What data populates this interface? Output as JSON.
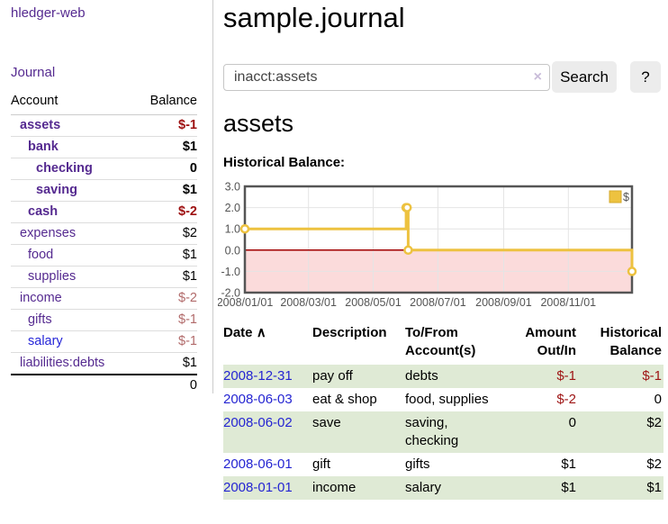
{
  "sidebar": {
    "app_title": "hledger-web",
    "nav": {
      "journal": "Journal"
    },
    "accounts_table": {
      "headers": {
        "account": "Account",
        "balance": "Balance"
      },
      "rows": [
        {
          "name": "assets",
          "depth": 1,
          "bold": true,
          "link_color": "p",
          "balance": "$-1",
          "balance_color": "neg-strong"
        },
        {
          "name": "bank",
          "depth": 2,
          "bold": true,
          "link_color": "p",
          "balance": "$1",
          "balance_color": ""
        },
        {
          "name": "checking",
          "depth": 3,
          "bold": true,
          "link_color": "p",
          "balance": "0",
          "balance_color": ""
        },
        {
          "name": "saving",
          "depth": 3,
          "bold": true,
          "link_color": "p",
          "balance": "$1",
          "balance_color": ""
        },
        {
          "name": "cash",
          "depth": 2,
          "bold": true,
          "link_color": "p",
          "balance": "$-2",
          "balance_color": "neg-strong"
        },
        {
          "name": "expenses",
          "depth": 1,
          "bold": false,
          "link_color": "p",
          "balance": "$2",
          "balance_color": ""
        },
        {
          "name": "food",
          "depth": 2,
          "bold": false,
          "link_color": "p",
          "balance": "$1",
          "balance_color": ""
        },
        {
          "name": "supplies",
          "depth": 2,
          "bold": false,
          "link_color": "p",
          "balance": "$1",
          "balance_color": ""
        },
        {
          "name": "income",
          "depth": 1,
          "bold": false,
          "link_color": "p",
          "balance": "$-2",
          "balance_color": "neg-muted"
        },
        {
          "name": "gifts",
          "depth": 2,
          "bold": false,
          "link_color": "p",
          "balance": "$-1",
          "balance_color": "neg-muted"
        },
        {
          "name": "salary",
          "depth": 2,
          "bold": false,
          "link_color": "bl",
          "balance": "$-1",
          "balance_color": "neg-muted"
        },
        {
          "name": "liabilities:debts",
          "depth": 1,
          "bold": false,
          "link_color": "p",
          "balance": "$1",
          "balance_color": ""
        }
      ],
      "total": "0"
    }
  },
  "main": {
    "title": "sample.journal",
    "search": {
      "value": "inacct:assets",
      "clear_icon": "×",
      "button": "Search",
      "help_button": "?"
    },
    "account_heading": "assets",
    "chart_title": "Historical Balance:"
  },
  "chart_data": {
    "type": "line",
    "style": "steps-with-markers",
    "title": "Historical Balance",
    "series": [
      {
        "name": "$",
        "color": "#edc240",
        "points": [
          [
            "2008/01/01",
            1
          ],
          [
            "2008/06/01",
            2
          ],
          [
            "2008/06/02",
            2
          ],
          [
            "2008/06/03",
            0
          ],
          [
            "2008/12/31",
            -1
          ]
        ]
      }
    ],
    "x_ticks": [
      "2008/01/01",
      "2008/03/01",
      "2008/05/01",
      "2008/07/01",
      "2008/09/01",
      "2008/11/01"
    ],
    "y_ticks": [
      3.0,
      2.0,
      1.0,
      0.0,
      -1.0,
      -2.0
    ],
    "xlim": [
      "2008/01/01",
      "2008/12/31"
    ],
    "ylim": [
      -2,
      3
    ],
    "grid": true,
    "legend_position": "top-right",
    "colors": {
      "negative_fill": "#fbdbdb",
      "zero_line": "#a00000",
      "grid": "#e4e4e4",
      "border": "#555555",
      "legend_box_border": "#d5a92e",
      "marker_fill": "#ffffff"
    }
  },
  "register_table": {
    "headers": {
      "date": "Date",
      "sort_icon": "∧",
      "description": "Description",
      "to_from": "To/From\nAccount(s)",
      "amount": "Amount\nOut/In",
      "balance": "Historical\nBalance"
    },
    "rows": [
      {
        "date": "2008-12-31",
        "description": "pay off",
        "to_from": [
          "debts"
        ],
        "amount": "$-1",
        "amount_negative": true,
        "balance": "$-1",
        "balance_negative": true,
        "highlight": true
      },
      {
        "date": "2008-06-03",
        "description": "eat & shop",
        "to_from": [
          "food, supplies"
        ],
        "amount": "$-2",
        "amount_negative": true,
        "balance": "0",
        "balance_negative": false,
        "highlight": false
      },
      {
        "date": "2008-06-02",
        "description": "save",
        "to_from": [
          "saving,",
          "checking"
        ],
        "amount": "0",
        "amount_negative": false,
        "balance": "$2",
        "balance_negative": false,
        "highlight": true
      },
      {
        "date": "2008-06-01",
        "description": "gift",
        "to_from": [
          "gifts"
        ],
        "amount": "$1",
        "amount_negative": false,
        "balance": "$2",
        "balance_negative": false,
        "highlight": false
      },
      {
        "date": "2008-01-01",
        "description": "income",
        "to_from": [
          "salary"
        ],
        "amount": "$1",
        "amount_negative": false,
        "balance": "$1",
        "balance_negative": false,
        "highlight": true
      }
    ]
  },
  "colors": {
    "link_purple": "#552a90",
    "link_blue": "#2626d8",
    "negative_strong": "#9d0f10",
    "negative_muted": "#b16a6a",
    "row_highlight_green": "#dfead5"
  }
}
